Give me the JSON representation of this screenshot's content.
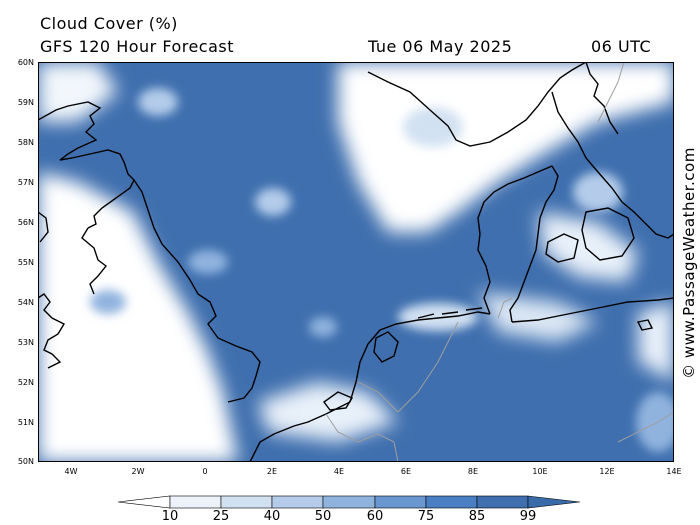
{
  "header": {
    "title": "Cloud Cover (%)",
    "subtitle": "GFS 120 Hour Forecast",
    "date": "Tue 06 May 2025",
    "time": "06 UTC"
  },
  "credit": "© www.PassageWeather.com",
  "axes": {
    "lat_labels": [
      "60N",
      "59N",
      "58N",
      "57N",
      "56N",
      "55N",
      "54N",
      "53N",
      "52N",
      "51N",
      "50N"
    ],
    "lon_labels": [
      "4W",
      "2W",
      "0",
      "2E",
      "4E",
      "6E",
      "8E",
      "10E",
      "12E",
      "14E"
    ]
  },
  "colorbar": {
    "levels": [
      "10",
      "25",
      "40",
      "50",
      "60",
      "75",
      "85",
      "99"
    ],
    "colors": [
      "#ffffff",
      "#edf2fa",
      "#d2e1f2",
      "#b4ccea",
      "#90b3de",
      "#6a97cf",
      "#4a7fc3",
      "#3f6fae",
      "#3a6ba9"
    ]
  },
  "map": {
    "extent": {
      "lon_min": -5,
      "lon_max": 14,
      "lat_min": 50,
      "lat_max": 60
    },
    "base_color": "#3f6fae",
    "land_outline_color": "#000000",
    "border_color": "#9e9e9e"
  }
}
